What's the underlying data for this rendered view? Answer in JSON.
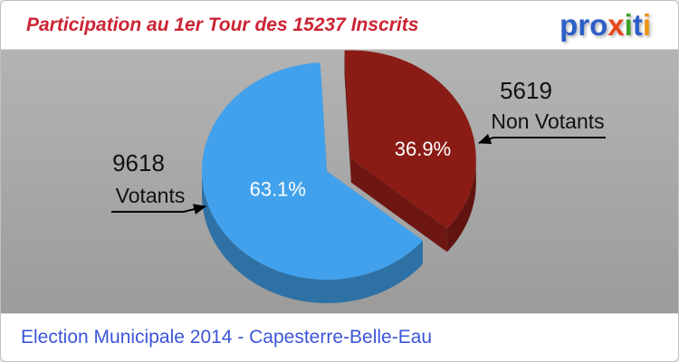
{
  "header": {
    "title": "Participation au 1er Tour des 15237 Inscrits",
    "logo": {
      "name": "proxiti",
      "letters": [
        {
          "ch": "p",
          "color": "#2d5fc8"
        },
        {
          "ch": "r",
          "color": "#2d5fc8"
        },
        {
          "ch": "o",
          "color": "#2d5fc8"
        },
        {
          "ch": "x",
          "color": "#e8471b"
        },
        {
          "ch": "i",
          "color": "#3da02b"
        },
        {
          "ch": "t",
          "color": "#2d5fc8"
        },
        {
          "ch": "i",
          "color": "#f0930e"
        }
      ]
    }
  },
  "footer": {
    "subtitle": "Election Municipale 2014 - Capesterre-Belle-Eau"
  },
  "colors": {
    "title": "#cb2434",
    "subtitle": "#3c55d8",
    "background": "#a6a6a6",
    "banner": "#ffffff"
  },
  "chart_data": {
    "type": "pie",
    "style": "3d-exploded",
    "title": "Participation au 1er Tour des 15237 Inscrits",
    "total_inscrits": 15237,
    "legend_position": "callout-labels",
    "slices": [
      {
        "label": "Votants",
        "count": 9618,
        "pct": 63.1,
        "pct_label": "63.1%",
        "color": "#41a1ec",
        "exploded": false
      },
      {
        "label": "Non Votants",
        "count": 5619,
        "pct": 36.9,
        "pct_label": "36.9%",
        "color": "#8a1c15",
        "exploded": true
      }
    ]
  }
}
